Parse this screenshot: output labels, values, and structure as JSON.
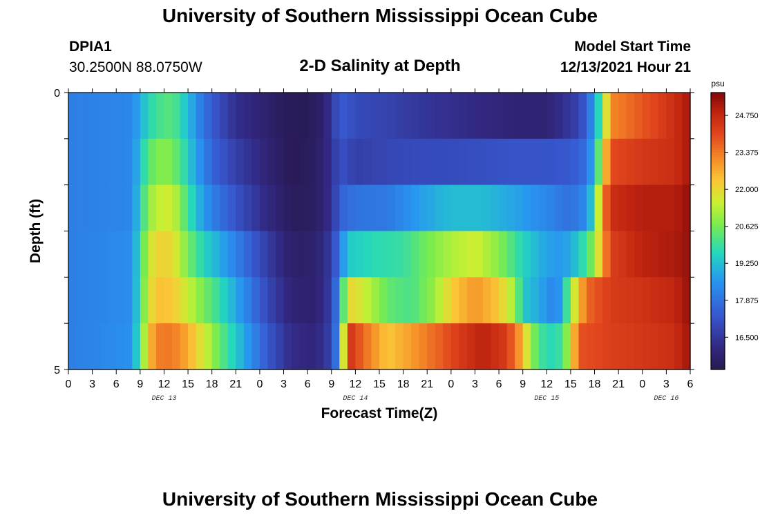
{
  "header": {
    "title": "University of Southern Mississippi Ocean Cube",
    "station_id": "DPIA1",
    "coordinates": "30.2500N  88.0750W",
    "subtitle": "2-D Salinity at Depth",
    "model_start_label": "Model Start Time",
    "model_start_value": "12/13/2021 Hour 21"
  },
  "footer": {
    "title": "University of Southern Mississippi Ocean Cube"
  },
  "chart_data": {
    "type": "heatmap",
    "title": "2-D Salinity at Depth",
    "xlabel": "Forecast Time(Z)",
    "ylabel": "Depth (ft)",
    "colorbar_unit": "psu",
    "colorbar_ticks": [
      "24.750",
      "23.375",
      "22.000",
      "20.625",
      "19.250",
      "17.875",
      "16.500"
    ],
    "colorbar_tick_values": [
      24.75,
      23.375,
      22.0,
      20.625,
      19.25,
      17.875,
      16.5
    ],
    "color_range": [
      15.3,
      25.6
    ],
    "y_tick_labels": [
      "0",
      "5"
    ],
    "ylim": [
      0,
      5
    ],
    "x_tick_labels": [
      "0",
      "3",
      "6",
      "9",
      "12",
      "15",
      "18",
      "21",
      "0",
      "3",
      "6",
      "9",
      "12",
      "15",
      "18",
      "21",
      "0",
      "3",
      "6",
      "9",
      "12",
      "15",
      "18",
      "21",
      "0",
      "3",
      "6"
    ],
    "x_hours": [
      0,
      3,
      6,
      9,
      12,
      15,
      18,
      21,
      24,
      27,
      30,
      33,
      36,
      39,
      42,
      45,
      48,
      51,
      54,
      57,
      60,
      63,
      66,
      69,
      72,
      75,
      78
    ],
    "xlim": [
      0,
      78
    ],
    "day_labels": [
      {
        "label": "DEC 13",
        "hour": 12
      },
      {
        "label": "DEC 14",
        "hour": 36
      },
      {
        "label": "DEC 15",
        "hour": 60
      },
      {
        "label": "DEC 16",
        "hour": 75
      }
    ],
    "depth_layers": [
      {
        "depth": 0,
        "profile": [
          [
            0,
            18.1
          ],
          [
            8,
            18.3
          ],
          [
            9,
            19.0
          ],
          [
            10,
            19.6
          ],
          [
            11,
            20.0
          ],
          [
            13,
            20.3
          ],
          [
            15,
            19.2
          ],
          [
            17,
            17.8
          ],
          [
            19,
            17.0
          ],
          [
            21,
            16.3
          ],
          [
            24,
            15.9
          ],
          [
            27,
            15.5
          ],
          [
            30,
            15.4
          ],
          [
            32,
            15.8
          ],
          [
            33,
            16.5
          ],
          [
            34,
            17.4
          ],
          [
            36,
            17.0
          ],
          [
            40,
            16.8
          ],
          [
            44,
            16.5
          ],
          [
            48,
            16.3
          ],
          [
            52,
            16.1
          ],
          [
            56,
            15.9
          ],
          [
            60,
            15.9
          ],
          [
            62,
            16.3
          ],
          [
            64,
            16.8
          ],
          [
            65,
            17.5
          ],
          [
            66,
            18.8
          ],
          [
            67,
            20.5
          ],
          [
            68,
            23.2
          ],
          [
            70,
            23.5
          ],
          [
            74,
            24.2
          ],
          [
            76,
            24.6
          ],
          [
            78,
            25.2
          ]
        ]
      },
      {
        "depth": 1,
        "profile": [
          [
            0,
            18.1
          ],
          [
            8,
            18.3
          ],
          [
            9,
            19.3
          ],
          [
            10,
            20.3
          ],
          [
            12,
            20.9
          ],
          [
            14,
            20.2
          ],
          [
            16,
            18.8
          ],
          [
            18,
            17.6
          ],
          [
            20,
            17.0
          ],
          [
            22,
            16.5
          ],
          [
            25,
            15.9
          ],
          [
            28,
            15.4
          ],
          [
            31,
            15.6
          ],
          [
            33,
            16.3
          ],
          [
            34,
            17.2
          ],
          [
            36,
            16.7
          ],
          [
            40,
            16.9
          ],
          [
            44,
            17.0
          ],
          [
            48,
            17.0
          ],
          [
            52,
            17.1
          ],
          [
            56,
            17.2
          ],
          [
            60,
            17.2
          ],
          [
            63,
            17.3
          ],
          [
            65,
            17.8
          ],
          [
            66,
            19.2
          ],
          [
            67,
            21.5
          ],
          [
            68,
            24.0
          ],
          [
            72,
            24.4
          ],
          [
            76,
            24.6
          ],
          [
            78,
            25.2
          ]
        ]
      },
      {
        "depth": 2,
        "profile": [
          [
            0,
            18.1
          ],
          [
            8,
            18.3
          ],
          [
            9,
            19.6
          ],
          [
            10,
            20.8
          ],
          [
            11,
            21.4
          ],
          [
            13,
            21.6
          ],
          [
            15,
            20.0
          ],
          [
            17,
            18.6
          ],
          [
            19,
            17.8
          ],
          [
            22,
            16.9
          ],
          [
            25,
            16.1
          ],
          [
            28,
            15.5
          ],
          [
            31,
            15.6
          ],
          [
            33,
            16.3
          ],
          [
            34,
            17.5
          ],
          [
            36,
            17.9
          ],
          [
            40,
            18.0
          ],
          [
            44,
            18.7
          ],
          [
            48,
            19.2
          ],
          [
            52,
            19.2
          ],
          [
            56,
            18.8
          ],
          [
            60,
            18.3
          ],
          [
            63,
            17.8
          ],
          [
            65,
            18.4
          ],
          [
            66,
            20.0
          ],
          [
            67,
            23.0
          ],
          [
            68,
            24.6
          ],
          [
            72,
            25.0
          ],
          [
            76,
            25.0
          ],
          [
            78,
            25.4
          ]
        ]
      },
      {
        "depth": 3,
        "profile": [
          [
            0,
            18.1
          ],
          [
            8,
            18.4
          ],
          [
            9,
            19.9
          ],
          [
            10,
            21.4
          ],
          [
            11,
            22.1
          ],
          [
            13,
            22.0
          ],
          [
            15,
            20.6
          ],
          [
            17,
            19.6
          ],
          [
            19,
            18.9
          ],
          [
            22,
            17.8
          ],
          [
            25,
            16.6
          ],
          [
            28,
            15.7
          ],
          [
            31,
            15.8
          ],
          [
            33,
            16.6
          ],
          [
            34,
            18.0
          ],
          [
            35,
            19.4
          ],
          [
            38,
            19.7
          ],
          [
            42,
            19.9
          ],
          [
            45,
            20.6
          ],
          [
            48,
            21.2
          ],
          [
            51,
            21.6
          ],
          [
            54,
            20.8
          ],
          [
            57,
            19.6
          ],
          [
            60,
            18.8
          ],
          [
            62,
            18.6
          ],
          [
            64,
            19.4
          ],
          [
            66,
            20.9
          ],
          [
            67,
            22.8
          ],
          [
            68,
            24.2
          ],
          [
            72,
            24.9
          ],
          [
            76,
            25.1
          ],
          [
            78,
            25.4
          ]
        ]
      },
      {
        "depth": 4,
        "profile": [
          [
            0,
            18.1
          ],
          [
            8,
            18.4
          ],
          [
            9,
            20.0
          ],
          [
            10,
            21.6
          ],
          [
            11,
            22.4
          ],
          [
            13,
            22.3
          ],
          [
            15,
            21.5
          ],
          [
            17,
            20.6
          ],
          [
            19,
            19.8
          ],
          [
            22,
            18.4
          ],
          [
            25,
            16.9
          ],
          [
            28,
            15.9
          ],
          [
            31,
            15.8
          ],
          [
            33,
            16.7
          ],
          [
            34,
            18.6
          ],
          [
            35,
            22.1
          ],
          [
            37,
            21.6
          ],
          [
            40,
            20.4
          ],
          [
            43,
            20.1
          ],
          [
            46,
            21.0
          ],
          [
            48,
            22.2
          ],
          [
            51,
            23.0
          ],
          [
            54,
            22.3
          ],
          [
            56,
            21.0
          ],
          [
            57,
            19.4
          ],
          [
            59,
            18.9
          ],
          [
            61,
            18.2
          ],
          [
            62,
            18.9
          ],
          [
            63,
            21.0
          ],
          [
            65,
            23.6
          ],
          [
            68,
            24.3
          ],
          [
            72,
            24.5
          ],
          [
            76,
            24.8
          ],
          [
            78,
            25.4
          ]
        ]
      },
      {
        "depth": 5,
        "profile": [
          [
            0,
            18.1
          ],
          [
            8,
            18.5
          ],
          [
            9,
            20.2
          ],
          [
            10,
            22.2
          ],
          [
            11,
            23.3
          ],
          [
            13,
            23.4
          ],
          [
            15,
            22.7
          ],
          [
            17,
            21.6
          ],
          [
            19,
            20.4
          ],
          [
            22,
            18.9
          ],
          [
            25,
            17.3
          ],
          [
            28,
            16.2
          ],
          [
            31,
            16.0
          ],
          [
            33,
            16.8
          ],
          [
            34,
            18.8
          ],
          [
            35,
            24.6
          ],
          [
            37,
            23.6
          ],
          [
            40,
            22.3
          ],
          [
            43,
            22.9
          ],
          [
            46,
            23.6
          ],
          [
            49,
            24.3
          ],
          [
            52,
            24.9
          ],
          [
            55,
            24.3
          ],
          [
            57,
            22.6
          ],
          [
            58,
            20.9
          ],
          [
            60,
            19.6
          ],
          [
            62,
            20.0
          ],
          [
            63,
            21.6
          ],
          [
            64,
            23.9
          ],
          [
            68,
            24.2
          ],
          [
            72,
            24.4
          ],
          [
            76,
            24.6
          ],
          [
            78,
            25.3
          ]
        ]
      }
    ]
  }
}
